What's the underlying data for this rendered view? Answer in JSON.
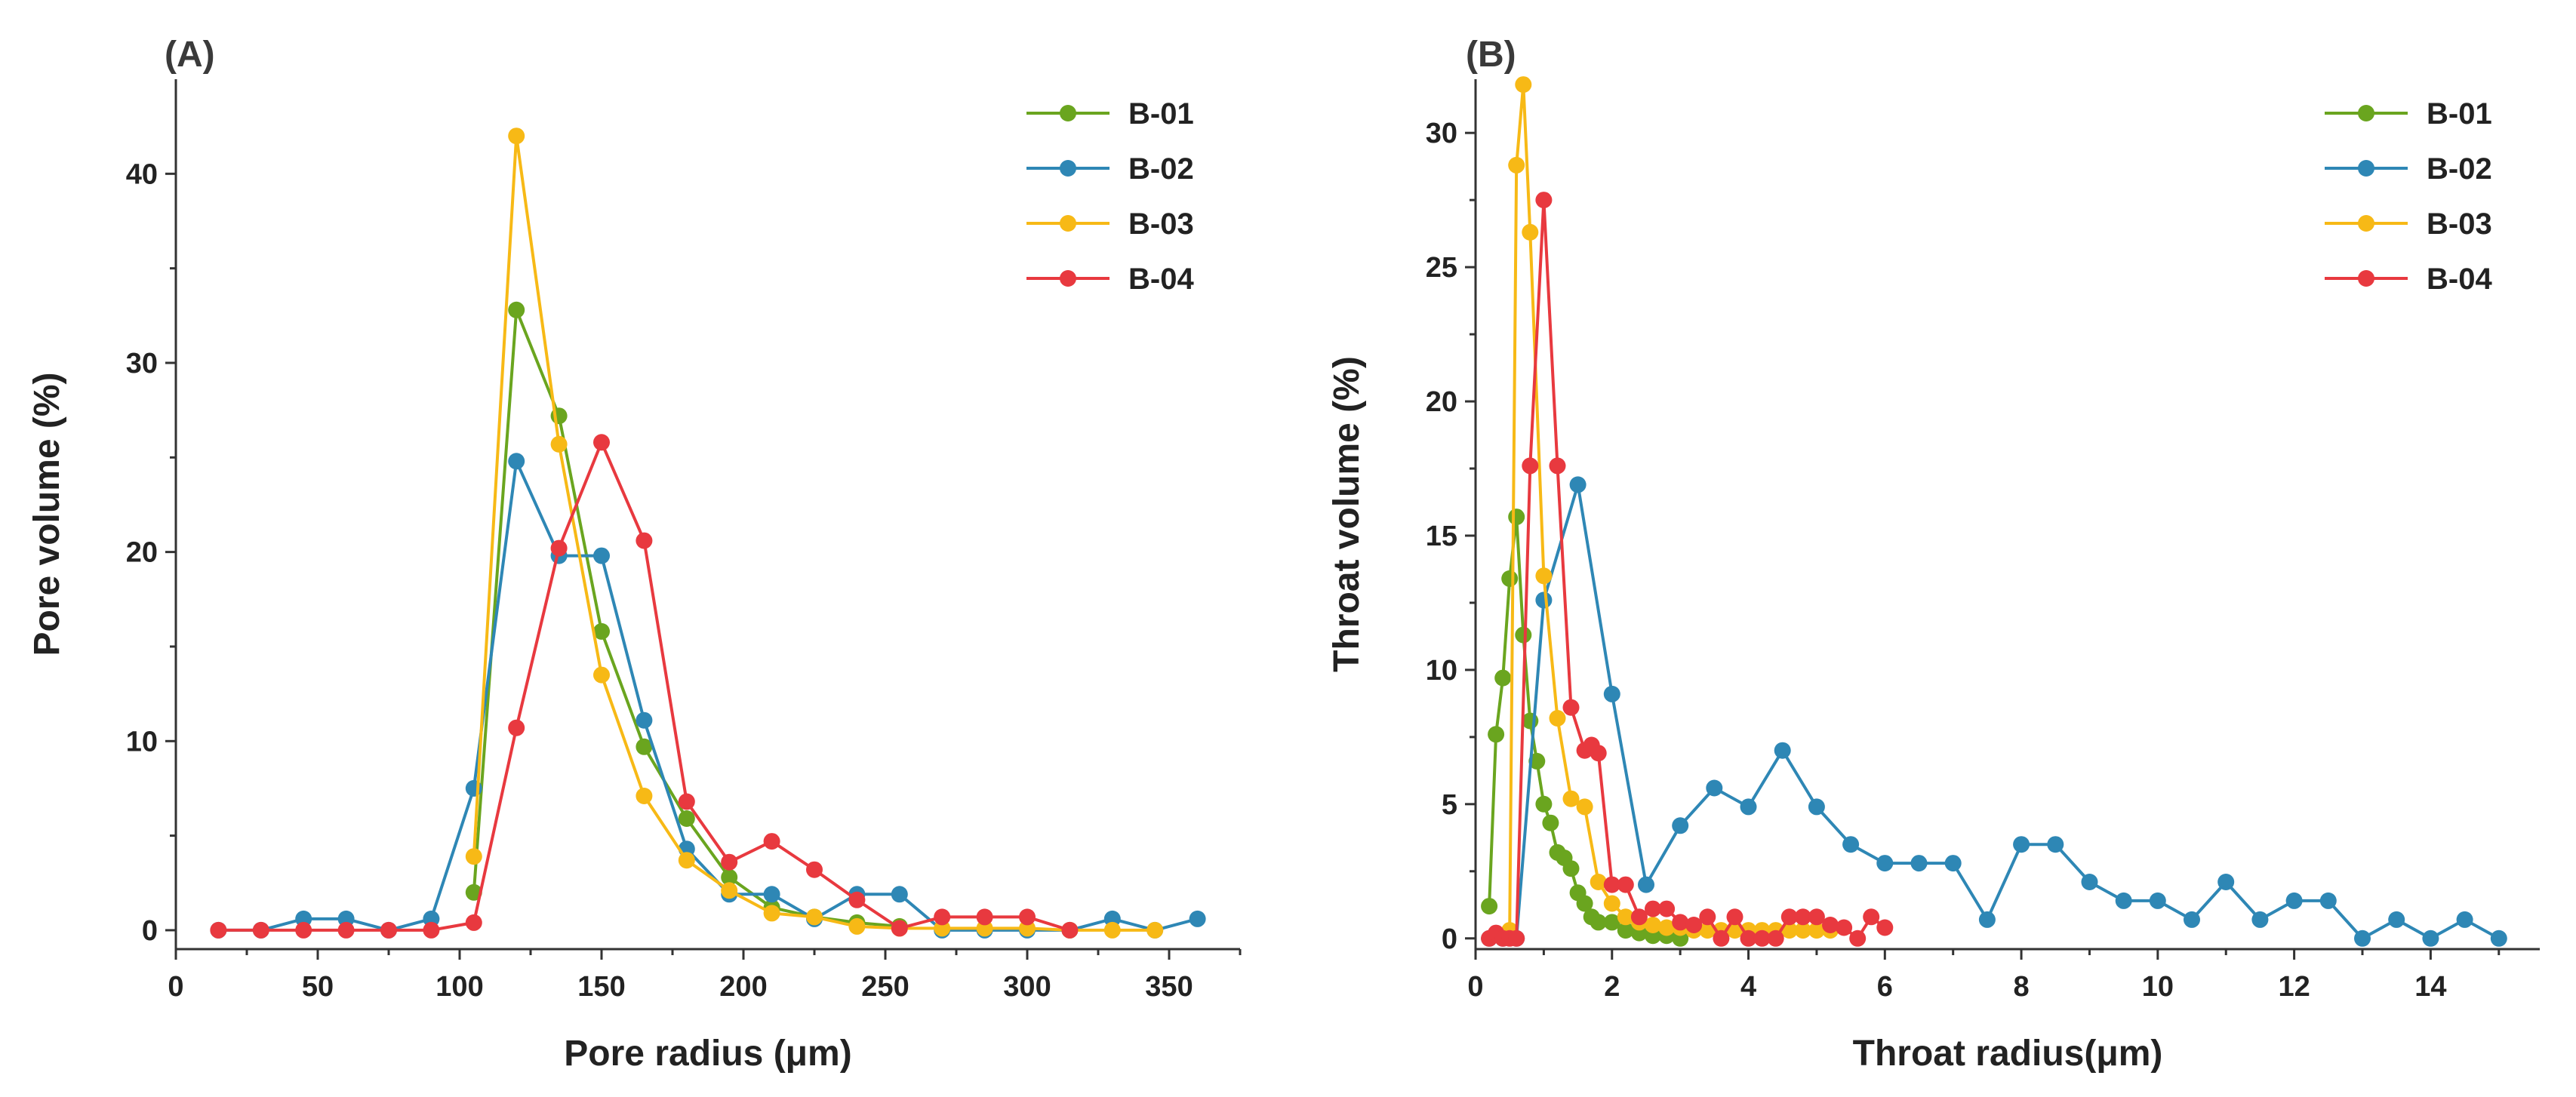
{
  "chart_data": [
    {
      "type": "line",
      "panel_label": "(A)",
      "xlabel": "Pore radius (μm)",
      "ylabel": "Pore volume (%)",
      "xlim": [
        0,
        375
      ],
      "ylim": [
        -1,
        45
      ],
      "xticks": [
        0,
        50,
        100,
        150,
        200,
        250,
        300,
        350
      ],
      "yticks": [
        0,
        10,
        20,
        30,
        40
      ],
      "legend_position": "top-right",
      "series": [
        {
          "name": "B-01",
          "color": "#6aa51f",
          "x": [
            105,
            120,
            135,
            150,
            165,
            180,
            195,
            210,
            225,
            240,
            255
          ],
          "y": [
            2.0,
            32.8,
            27.2,
            15.8,
            9.7,
            5.9,
            2.8,
            1.2,
            0.7,
            0.4,
            0.2
          ]
        },
        {
          "name": "B-02",
          "color": "#2e87b5",
          "x": [
            15,
            30,
            45,
            60,
            75,
            90,
            105,
            120,
            135,
            150,
            165,
            180,
            195,
            210,
            225,
            240,
            255,
            270,
            285,
            300,
            315,
            330,
            345,
            360
          ],
          "y": [
            0,
            0,
            0.6,
            0.6,
            0,
            0.6,
            7.5,
            24.8,
            19.8,
            19.8,
            11.1,
            4.3,
            1.9,
            1.9,
            0.6,
            1.9,
            1.9,
            0,
            0,
            0,
            0,
            0.6,
            0,
            0.6
          ]
        },
        {
          "name": "B-03",
          "color": "#f7b916",
          "x": [
            105,
            120,
            135,
            150,
            165,
            180,
            195,
            210,
            225,
            240,
            255,
            270,
            285,
            300,
            315,
            330,
            345
          ],
          "y": [
            3.9,
            42.0,
            25.7,
            13.5,
            7.1,
            3.7,
            2.1,
            0.9,
            0.7,
            0.2,
            0.1,
            0.1,
            0.1,
            0.1,
            0,
            0,
            0
          ]
        },
        {
          "name": "B-04",
          "color": "#e8393f",
          "x": [
            15,
            30,
            45,
            60,
            75,
            90,
            105,
            120,
            135,
            150,
            165,
            180,
            195,
            210,
            225,
            240,
            255,
            270,
            285,
            300,
            315
          ],
          "y": [
            0,
            0,
            0,
            0,
            0,
            0,
            0.4,
            10.7,
            20.2,
            25.8,
            20.6,
            6.8,
            3.6,
            4.7,
            3.2,
            1.6,
            0.1,
            0.7,
            0.7,
            0.7,
            0
          ]
        }
      ]
    },
    {
      "type": "line",
      "panel_label": "(B)",
      "xlabel": "Throat radius(μm)",
      "ylabel": "Throat volume (%)",
      "xlim": [
        0,
        15.6
      ],
      "ylim": [
        -0.4,
        32
      ],
      "xticks": [
        0,
        2,
        4,
        6,
        8,
        10,
        12,
        14
      ],
      "yticks": [
        0,
        5,
        10,
        15,
        20,
        25,
        30
      ],
      "legend_position": "top-right",
      "series": [
        {
          "name": "B-01",
          "color": "#6aa51f",
          "x": [
            0.2,
            0.3,
            0.4,
            0.5,
            0.6,
            0.7,
            0.8,
            0.9,
            1.0,
            1.1,
            1.2,
            1.3,
            1.4,
            1.5,
            1.6,
            1.7,
            1.8,
            2.0,
            2.2,
            2.4,
            2.6,
            2.8,
            3.0
          ],
          "y": [
            1.2,
            7.6,
            9.7,
            13.4,
            15.7,
            11.3,
            8.1,
            6.6,
            5.0,
            4.3,
            3.2,
            3.0,
            2.6,
            1.7,
            1.3,
            0.8,
            0.6,
            0.6,
            0.3,
            0.2,
            0.1,
            0.1,
            0
          ]
        },
        {
          "name": "B-02",
          "color": "#2e87b5",
          "x": [
            0.2,
            0.4,
            0.6,
            1.0,
            1.5,
            2.0,
            2.5,
            3.0,
            3.5,
            4.0,
            4.5,
            5.0,
            5.5,
            6.0,
            6.5,
            7.0,
            7.5,
            8.0,
            8.5,
            9.0,
            9.5,
            10.0,
            10.5,
            11.0,
            11.5,
            12.0,
            12.5,
            13.0,
            13.5,
            14.0,
            14.5,
            15.0
          ],
          "y": [
            0,
            0,
            0,
            12.6,
            16.9,
            9.1,
            2.0,
            4.2,
            5.6,
            4.9,
            7.0,
            4.9,
            3.5,
            2.8,
            2.8,
            2.8,
            0.7,
            3.5,
            3.5,
            2.1,
            1.4,
            1.4,
            0.7,
            2.1,
            0.7,
            1.4,
            1.4,
            0,
            0.7,
            0,
            0.7,
            0
          ]
        },
        {
          "name": "B-03",
          "color": "#f7b916",
          "x": [
            0.5,
            0.6,
            0.7,
            0.8,
            1.0,
            1.2,
            1.4,
            1.6,
            1.8,
            2.0,
            2.2,
            2.4,
            2.6,
            2.8,
            3.0,
            3.2,
            3.4,
            3.6,
            3.8,
            4.0,
            4.2,
            4.4,
            4.6,
            4.8,
            5.0,
            5.2
          ],
          "y": [
            0.3,
            28.8,
            31.8,
            26.3,
            13.5,
            8.2,
            5.2,
            4.9,
            2.1,
            1.3,
            0.8,
            0.6,
            0.5,
            0.4,
            0.4,
            0.3,
            0.3,
            0.3,
            0.3,
            0.3,
            0.3,
            0.3,
            0.3,
            0.3,
            0.3,
            0.3
          ]
        },
        {
          "name": "B-04",
          "color": "#e8393f",
          "x": [
            0.2,
            0.3,
            0.4,
            0.5,
            0.6,
            0.8,
            1.0,
            1.2,
            1.4,
            1.6,
            1.7,
            1.8,
            2.0,
            2.2,
            2.4,
            2.6,
            2.8,
            3.0,
            3.2,
            3.4,
            3.6,
            3.8,
            4.0,
            4.2,
            4.4,
            4.6,
            4.8,
            5.0,
            5.2,
            5.4,
            5.6,
            5.8,
            6.0
          ],
          "y": [
            0,
            0.2,
            0,
            0,
            0,
            17.6,
            27.5,
            17.6,
            8.6,
            7.0,
            7.2,
            6.9,
            2.0,
            2.0,
            0.8,
            1.1,
            1.1,
            0.6,
            0.5,
            0.8,
            0,
            0.8,
            0,
            0,
            0,
            0.8,
            0.8,
            0.8,
            0.5,
            0.4,
            0,
            0.8,
            0.4
          ]
        }
      ]
    }
  ]
}
